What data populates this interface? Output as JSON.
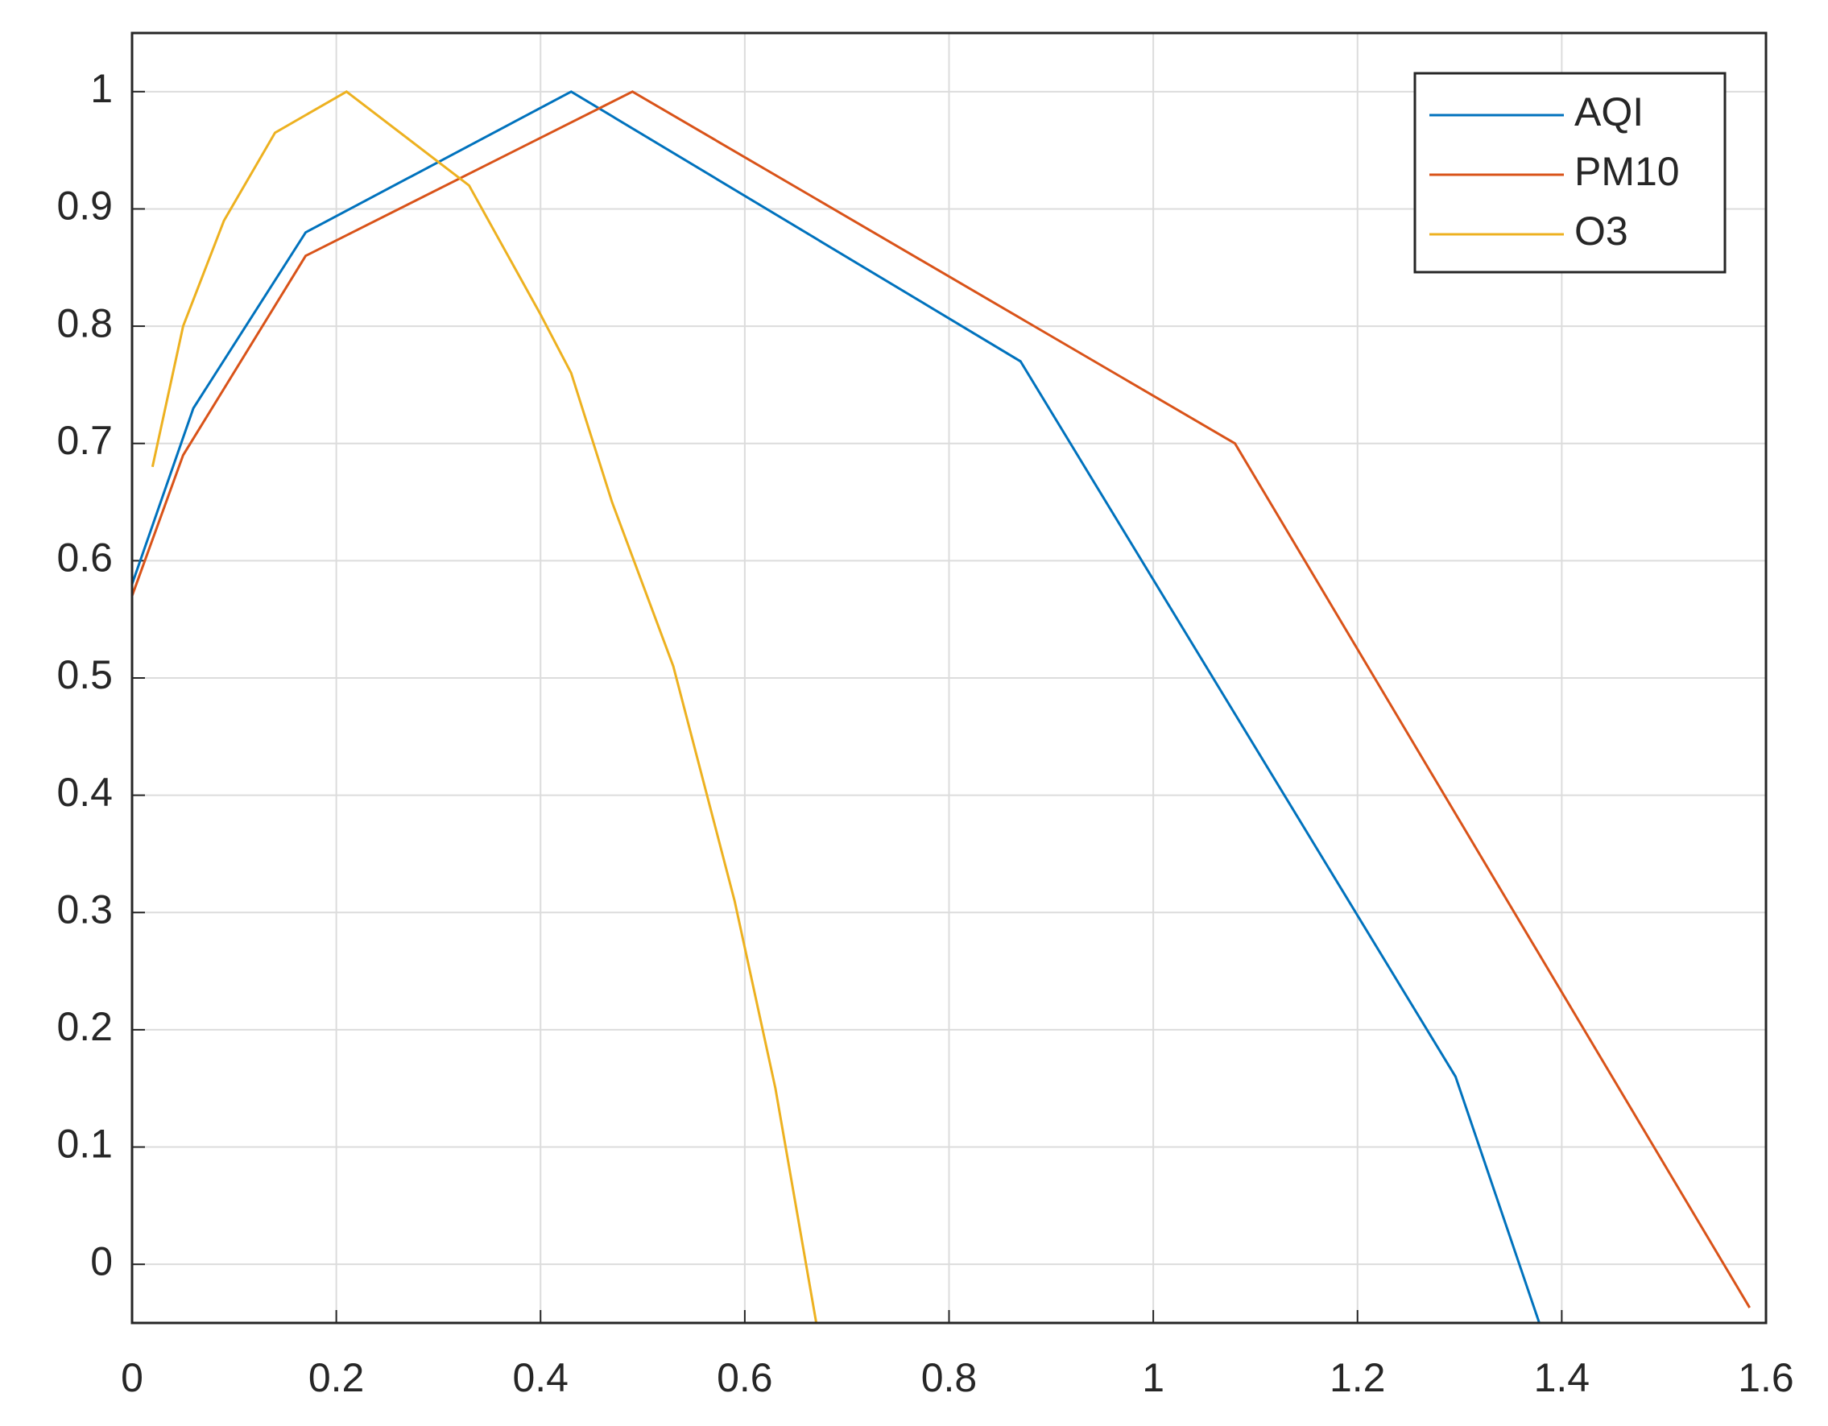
{
  "chart_data": {
    "type": "line",
    "series": [
      {
        "name": "AQI",
        "color": "#0072BD",
        "x": [
          0,
          0.06,
          0.17,
          0.43,
          0.87,
          1.296,
          1.378
        ],
        "values": [
          0.58,
          0.73,
          0.88,
          1.0,
          0.77,
          0.16,
          -0.05
        ]
      },
      {
        "name": "PM10",
        "color": "#D95319",
        "x": [
          0,
          0.05,
          0.17,
          0.49,
          1.08,
          1.584
        ],
        "values": [
          0.57,
          0.69,
          0.86,
          1.0,
          0.7,
          -0.037
        ]
      },
      {
        "name": "O3",
        "color": "#EDB120",
        "x": [
          0.02,
          0.05,
          0.09,
          0.14,
          0.21,
          0.33,
          0.4,
          0.43,
          0.47,
          0.53,
          0.59,
          0.63,
          0.67
        ],
        "values": [
          0.68,
          0.8,
          0.89,
          0.965,
          1.0,
          0.92,
          0.81,
          0.76,
          0.65,
          0.51,
          0.31,
          0.15,
          -0.05
        ]
      }
    ],
    "xlim": [
      0,
      1.6
    ],
    "xticks": [
      0,
      0.2,
      0.4,
      0.6,
      0.8,
      1,
      1.2,
      1.4,
      1.6
    ],
    "ylim": [
      -0.05,
      1.05
    ],
    "yticks": [
      0,
      0.1,
      0.2,
      0.3,
      0.4,
      0.5,
      0.6,
      0.7,
      0.8,
      0.9,
      1
    ],
    "grid": true,
    "legend": "top-right"
  }
}
